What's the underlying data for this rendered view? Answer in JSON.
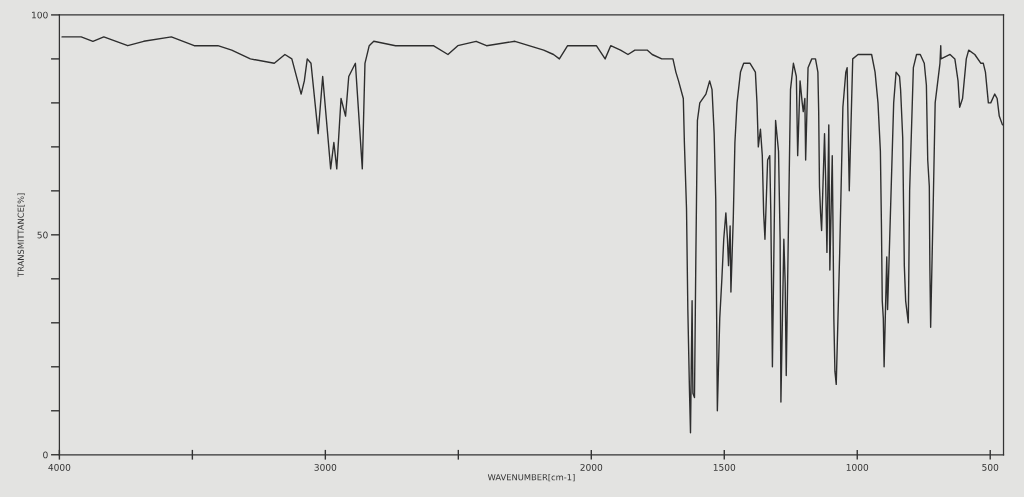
{
  "chart_data": {
    "type": "line",
    "xlabel": "WAVENUMBER[cm-1]",
    "ylabel": "TRANSMITTANCE[%]",
    "xlim": [
      4000,
      450
    ],
    "ylim": [
      0,
      100
    ],
    "xticks": [
      4000,
      {
        "value": 3500,
        "label": null
      },
      3000,
      {
        "value": 2500,
        "label": null
      },
      2000,
      1500,
      1000,
      500
    ],
    "yticks": [
      0,
      {
        "value": 10,
        "label": null
      },
      {
        "value": 20,
        "label": null
      },
      {
        "value": 30,
        "label": null
      },
      {
        "value": 40,
        "label": null
      },
      50,
      {
        "value": 60,
        "label": null
      },
      {
        "value": 70,
        "label": null
      },
      {
        "value": 80,
        "label": null
      },
      {
        "value": 90,
        "label": null
      },
      100
    ],
    "marker": "none",
    "line_style": "solid",
    "x": [
      3990,
      3918,
      3874,
      3833,
      3743,
      3683,
      3579,
      3493,
      3404,
      3352,
      3282,
      3192,
      3152,
      3126,
      3091,
      3079,
      3068,
      3054,
      3027,
      3010,
      2980,
      2968,
      2957,
      2941,
      2924,
      2912,
      2887,
      2861,
      2851,
      2835,
      2818,
      2736,
      2594,
      2539,
      2502,
      2433,
      2394,
      2287,
      2179,
      2142,
      2120,
      2089,
      1981,
      1948,
      1927,
      1890,
      1862,
      1836,
      1790,
      1771,
      1735,
      1693,
      1682,
      1672,
      1654,
      1650,
      1642,
      1637,
      1631,
      1627,
      1621,
      1618,
      1612,
      1607,
      1601,
      1592,
      1569,
      1555,
      1546,
      1538,
      1532,
      1526,
      1517,
      1509,
      1502,
      1494,
      1488,
      1484,
      1478,
      1475,
      1466,
      1460,
      1452,
      1439,
      1427,
      1403,
      1383,
      1377,
      1372,
      1364,
      1357,
      1352,
      1347,
      1337,
      1329,
      1325,
      1322,
      1319,
      1307,
      1296,
      1290,
      1287,
      1276,
      1271,
      1267,
      1251,
      1240,
      1229,
      1224,
      1215,
      1207,
      1203,
      1197,
      1194,
      1185,
      1171,
      1157,
      1148,
      1145,
      1142,
      1138,
      1134,
      1123,
      1119,
      1114,
      1107,
      1103,
      1094,
      1091,
      1088,
      1084,
      1079,
      1066,
      1054,
      1043,
      1038,
      1033,
      1030,
      1017,
      997,
      968,
      946,
      933,
      922,
      913,
      909,
      906,
      902,
      899,
      889,
      886,
      880,
      863,
      854,
      841,
      837,
      829,
      826,
      823,
      818,
      808,
      803,
      789,
      777,
      763,
      748,
      740,
      735,
      729,
      727,
      724,
      714,
      707,
      689,
      686,
      685,
      651,
      633,
      621,
      615,
      604,
      590,
      581,
      558,
      535,
      526,
      518,
      507,
      498,
      483,
      474,
      466,
      454
    ],
    "series": [
      {
        "color": "#2e2e2e",
        "values": [
          95,
          95,
          94,
          95,
          93,
          94,
          95,
          93,
          93,
          92,
          90,
          89,
          91,
          90,
          82,
          85,
          90,
          89,
          73,
          86,
          65,
          71,
          65,
          81,
          77,
          86,
          89,
          65,
          89,
          93,
          94,
          93,
          93,
          91,
          93,
          94,
          93,
          94,
          92,
          91,
          90,
          93,
          93,
          90,
          93,
          92,
          91,
          92,
          92,
          91,
          90,
          90,
          87,
          85,
          81,
          71,
          56,
          33,
          15,
          5,
          35,
          14,
          13,
          44,
          76,
          80,
          82,
          85,
          83,
          73,
          58,
          10,
          31,
          40,
          49,
          55,
          49,
          43,
          52,
          37,
          54,
          71,
          80,
          87,
          89,
          89,
          87,
          80,
          70,
          74,
          68,
          55,
          49,
          67,
          68,
          55,
          38,
          20,
          76,
          69,
          49,
          12,
          49,
          39,
          18,
          83,
          89,
          86,
          68,
          85,
          80,
          78,
          81,
          67,
          88,
          90,
          90,
          87,
          78,
          61,
          55,
          51,
          73,
          63,
          46,
          75,
          42,
          68,
          51,
          31,
          19,
          16,
          46,
          79,
          87,
          88,
          70,
          60,
          90,
          91,
          91,
          91,
          87,
          80,
          69,
          52,
          35,
          31,
          20,
          45,
          33,
          45,
          80,
          87,
          86,
          83,
          72,
          57,
          43,
          35,
          30,
          60,
          88,
          91,
          91,
          89,
          84,
          67,
          61,
          43,
          29,
          58,
          80,
          89,
          93,
          90,
          91,
          90,
          85,
          79,
          81,
          90,
          92,
          91,
          89,
          89,
          87,
          80,
          80,
          82,
          81,
          77,
          75
        ]
      }
    ]
  }
}
